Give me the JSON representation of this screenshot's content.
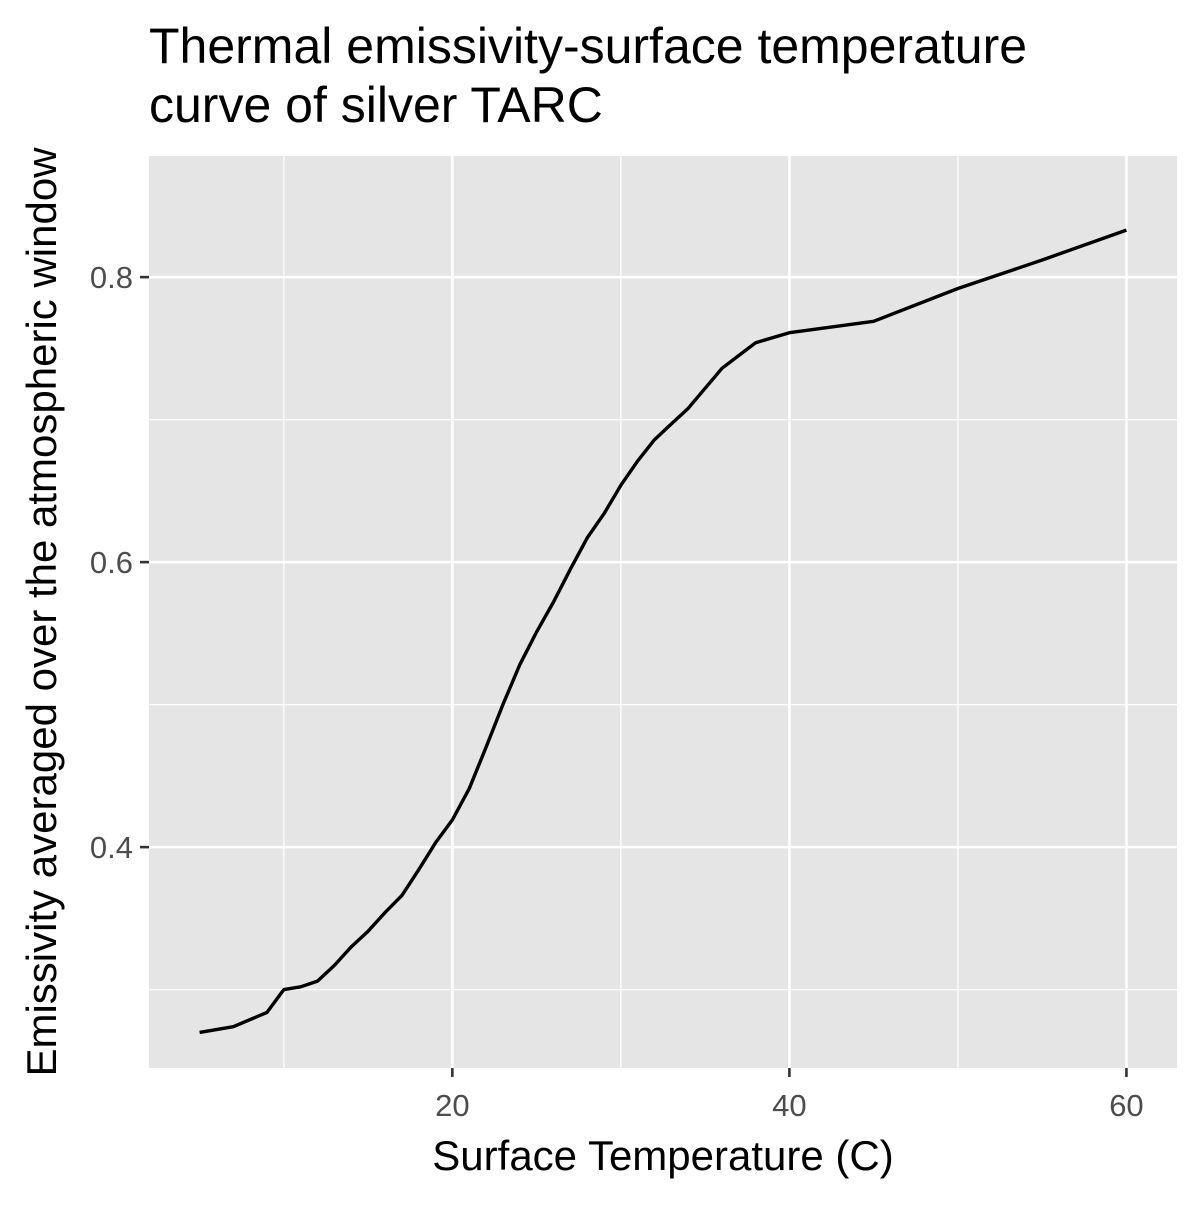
{
  "chart_data": {
    "type": "line",
    "title_lines": [
      "Thermal emissivity-surface temperature",
      "curve of silver TARC"
    ],
    "xlabel": "Surface Temperature (C)",
    "ylabel": "Emissivity averaged over the atmospheric window",
    "xlim": [
      2,
      63
    ],
    "ylim": [
      0.245,
      0.885
    ],
    "x_major_ticks": [
      20,
      40,
      60
    ],
    "x_minor_ticks": [
      10,
      30,
      50
    ],
    "y_major_ticks": [
      0.4,
      0.6,
      0.8
    ],
    "y_minor_ticks": [
      0.3,
      0.5,
      0.7
    ],
    "x_tick_labels": [
      "20",
      "40",
      "60"
    ],
    "y_tick_labels": [
      "0.4",
      "0.6",
      "0.8"
    ],
    "grid": true,
    "legend": "none",
    "series": [
      {
        "color": "#000000",
        "x": [
          5,
          7,
          9,
          10,
          11,
          12,
          13,
          14,
          15,
          16,
          17,
          18,
          19,
          20,
          21,
          22,
          23,
          24,
          25,
          26,
          27,
          28,
          29,
          30,
          31,
          32,
          33,
          34,
          35,
          36,
          37,
          38,
          40,
          45,
          50,
          55,
          60
        ],
        "y": [
          0.27,
          0.274,
          0.284,
          0.3,
          0.302,
          0.306,
          0.317,
          0.33,
          0.341,
          0.354,
          0.366,
          0.384,
          0.403,
          0.419,
          0.441,
          0.47,
          0.5,
          0.528,
          0.551,
          0.572,
          0.595,
          0.617,
          0.634,
          0.654,
          0.671,
          0.686,
          0.697,
          0.708,
          0.722,
          0.736,
          0.745,
          0.754,
          0.761,
          0.769,
          0.792,
          0.812,
          0.833
        ]
      }
    ],
    "colors": {
      "panel_background": "#e5e5e5",
      "grid_line": "#ffffff",
      "tick_mark": "#333333",
      "tick_label": "#4d4d4d",
      "line": "#000000"
    }
  }
}
